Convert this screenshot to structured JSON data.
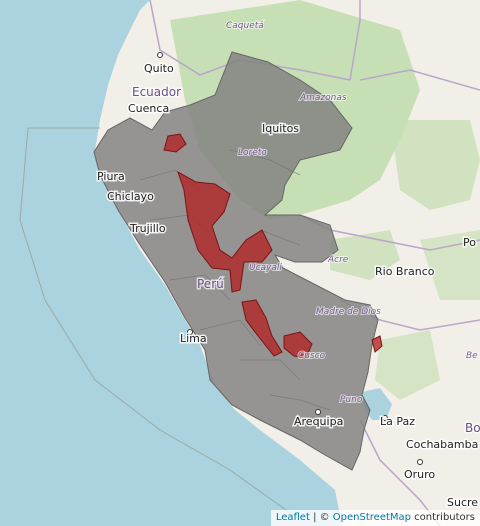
{
  "map": {
    "colors": {
      "water": "#aad3df",
      "land": "#f2efe9",
      "forest": "#c7dfb4",
      "overlay": "#808080",
      "highlight": "#b22222"
    },
    "cities": [
      {
        "key": "quito",
        "label": "Quito"
      },
      {
        "key": "cuenca",
        "label": "Cuenca"
      },
      {
        "key": "piura",
        "label": "Piura"
      },
      {
        "key": "chiclayo",
        "label": "Chiclayo"
      },
      {
        "key": "trujillo",
        "label": "Trujillo"
      },
      {
        "key": "iquitos",
        "label": "Iquitos"
      },
      {
        "key": "lima",
        "label": "Lima"
      },
      {
        "key": "arequipa",
        "label": "Arequipa"
      },
      {
        "key": "rio-branco",
        "label": "Rio Branco"
      },
      {
        "key": "la-paz",
        "label": "La Paz"
      },
      {
        "key": "cochabamba",
        "label": "Cochabamba"
      },
      {
        "key": "oruro",
        "label": "Oruro"
      },
      {
        "key": "sucre",
        "label": "Sucre"
      },
      {
        "key": "po",
        "label": "Po"
      }
    ],
    "countries": [
      {
        "key": "ecuador",
        "label": "Ecuador"
      },
      {
        "key": "peru",
        "label": "Perú"
      },
      {
        "key": "bo",
        "label": "Bo"
      }
    ],
    "regions": [
      {
        "key": "caqueta",
        "label": "Caquetá"
      },
      {
        "key": "amazonas",
        "label": "Amazonas"
      },
      {
        "key": "loreto",
        "label": "Loreto"
      },
      {
        "key": "ucayali",
        "label": "Ucayali"
      },
      {
        "key": "acre",
        "label": "Acre"
      },
      {
        "key": "madre-de-dios",
        "label": "Madre de Dios"
      },
      {
        "key": "cusco",
        "label": "Cusco"
      },
      {
        "key": "puno",
        "label": "Puno"
      },
      {
        "key": "be",
        "label": "Be"
      }
    ]
  },
  "attribution": {
    "leaflet": "Leaflet",
    "separator": " | © ",
    "osm": "OpenStreetMap",
    "suffix": " contributors"
  }
}
